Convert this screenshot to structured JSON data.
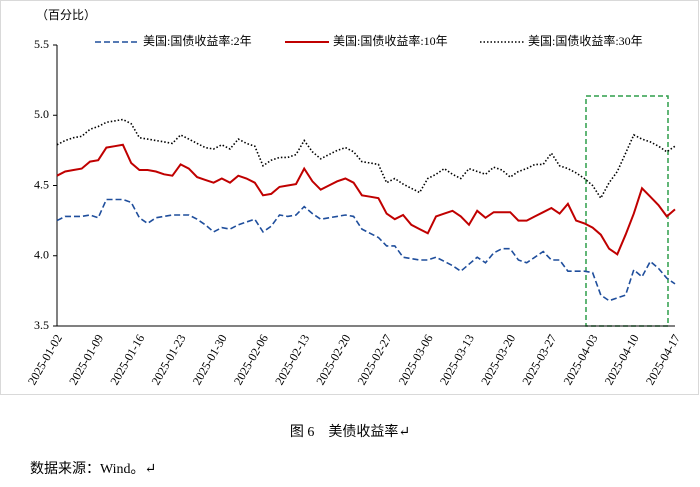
{
  "chart_data": {
    "type": "line",
    "unit_label": "（百分比）",
    "categories": [
      "2025-01-02",
      null,
      null,
      null,
      null,
      "2025-01-09",
      null,
      null,
      null,
      null,
      "2025-01-16",
      null,
      null,
      null,
      null,
      "2025-01-23",
      null,
      null,
      null,
      null,
      "2025-01-30",
      null,
      null,
      null,
      null,
      "2025-02-06",
      null,
      null,
      null,
      null,
      "2025-02-13",
      null,
      null,
      null,
      null,
      "2025-02-20",
      null,
      null,
      null,
      null,
      "2025-02-27",
      null,
      null,
      null,
      null,
      "2025-03-06",
      null,
      null,
      null,
      null,
      "2025-03-13",
      null,
      null,
      null,
      null,
      "2025-03-20",
      null,
      null,
      null,
      null,
      "2025-03-27",
      null,
      null,
      null,
      null,
      "2025-04-03",
      null,
      null,
      null,
      null,
      "2025-04-10",
      null,
      null,
      null,
      null,
      "2025-04-17"
    ],
    "series": [
      {
        "name": "美国:国债收益率:2年",
        "color": "#1f4e9c",
        "dash": "dashed",
        "values": [
          4.25,
          4.28,
          4.28,
          4.28,
          4.29,
          4.27,
          4.4,
          4.4,
          4.4,
          4.38,
          4.27,
          4.23,
          4.27,
          4.28,
          4.29,
          4.29,
          4.29,
          4.26,
          4.22,
          4.17,
          4.2,
          4.19,
          4.22,
          4.24,
          4.26,
          4.17,
          4.21,
          4.29,
          4.28,
          4.29,
          4.35,
          4.3,
          4.26,
          4.27,
          4.28,
          4.29,
          4.28,
          4.19,
          4.16,
          4.13,
          4.07,
          4.07,
          3.99,
          3.98,
          3.97,
          3.97,
          3.99,
          3.96,
          3.93,
          3.89,
          3.94,
          3.99,
          3.95,
          4.02,
          4.05,
          4.05,
          3.97,
          3.95,
          3.99,
          4.03,
          3.97,
          3.97,
          3.89,
          3.89,
          3.89,
          3.88,
          3.72,
          3.68,
          3.7,
          3.72,
          3.9,
          3.85,
          3.96,
          3.91,
          3.84,
          3.8
        ]
      },
      {
        "name": "美国:国债收益率:10年",
        "color": "#c00000",
        "dash": "solid",
        "values": [
          4.57,
          4.6,
          4.61,
          4.62,
          4.67,
          4.68,
          4.77,
          4.78,
          4.79,
          4.66,
          4.61,
          4.61,
          4.6,
          4.58,
          4.57,
          4.65,
          4.62,
          4.56,
          4.54,
          4.52,
          4.55,
          4.52,
          4.57,
          4.55,
          4.52,
          4.43,
          4.44,
          4.49,
          4.5,
          4.51,
          4.62,
          4.53,
          4.47,
          4.5,
          4.53,
          4.55,
          4.52,
          4.43,
          4.42,
          4.41,
          4.3,
          4.26,
          4.29,
          4.22,
          4.19,
          4.16,
          4.28,
          4.3,
          4.32,
          4.28,
          4.22,
          4.32,
          4.27,
          4.31,
          4.31,
          4.31,
          4.25,
          4.25,
          4.28,
          4.31,
          4.34,
          4.3,
          4.37,
          4.25,
          4.23,
          4.2,
          4.15,
          4.05,
          4.01,
          4.15,
          4.3,
          4.48,
          4.42,
          4.36,
          4.28,
          4.33
        ]
      },
      {
        "name": "美国:国债收益率:30年",
        "color": "#000000",
        "dash": "dotted",
        "values": [
          4.79,
          4.82,
          4.84,
          4.85,
          4.9,
          4.92,
          4.95,
          4.96,
          4.97,
          4.94,
          4.84,
          4.83,
          4.82,
          4.81,
          4.8,
          4.86,
          4.83,
          4.8,
          4.77,
          4.76,
          4.79,
          4.76,
          4.83,
          4.8,
          4.78,
          4.64,
          4.68,
          4.7,
          4.7,
          4.72,
          4.82,
          4.74,
          4.69,
          4.72,
          4.75,
          4.77,
          4.74,
          4.67,
          4.66,
          4.65,
          4.52,
          4.55,
          4.51,
          4.48,
          4.45,
          4.55,
          4.58,
          4.62,
          4.58,
          4.55,
          4.62,
          4.6,
          4.58,
          4.63,
          4.61,
          4.56,
          4.6,
          4.62,
          4.65,
          4.65,
          4.73,
          4.64,
          4.62,
          4.59,
          4.55,
          4.5,
          4.41,
          4.52,
          4.6,
          4.73,
          4.86,
          4.83,
          4.81,
          4.78,
          4.74,
          4.78
        ]
      }
    ],
    "ylim": [
      3.5,
      5.5
    ],
    "yticks": [
      3.5,
      {
        "value": 4,
        "label": "4.0"
      },
      4.5,
      {
        "value": 5,
        "label": "5.0"
      },
      5.5
    ],
    "legend": "top"
  },
  "caption": "图 6　美债收益率↵",
  "source": "数据来源：Wind。↵"
}
